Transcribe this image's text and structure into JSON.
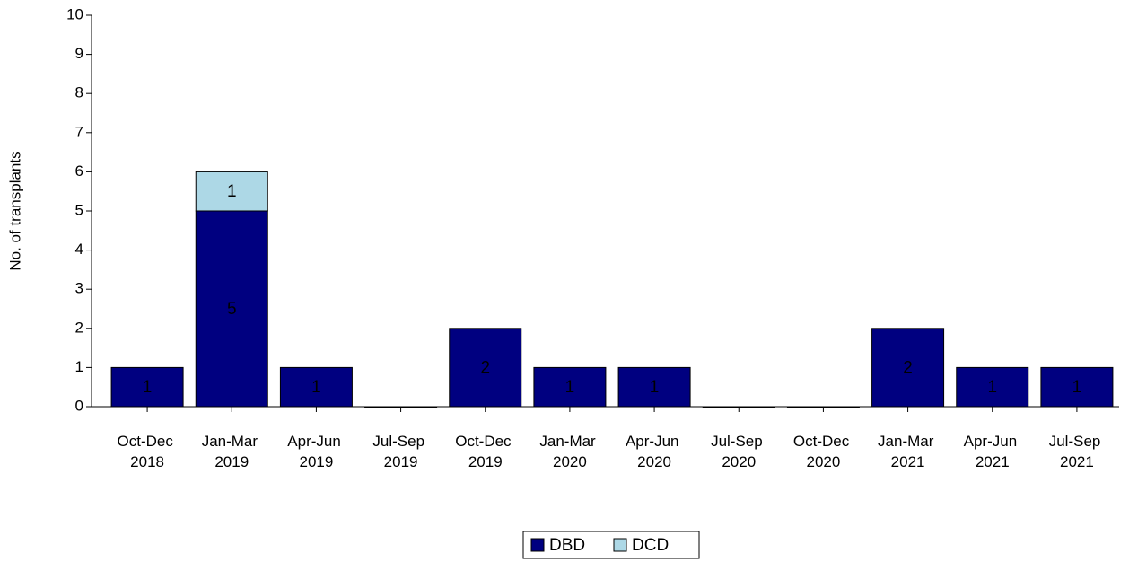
{
  "chart_data": {
    "type": "stacked_bar",
    "y_label": "No. of transplants",
    "categories": [
      "Oct-Dec 2018",
      "Jan-Mar 2019",
      "Apr-Jun 2019",
      "Jul-Sep 2019",
      "Oct-Dec 2019",
      "Jan-Mar 2020",
      "Apr-Jun 2020",
      "Jul-Sep 2020",
      "Oct-Dec 2020",
      "Jan-Mar 2021",
      "Apr-Jun 2021",
      "Jul-Sep 2021"
    ],
    "series": [
      {
        "name": "DBD",
        "color": "#000080",
        "label_color": "#ffffff",
        "values": [
          1,
          5,
          1,
          0,
          2,
          1,
          1,
          0,
          0,
          2,
          1,
          1
        ]
      },
      {
        "name": "DCD",
        "color": "#add8e6",
        "label_color": "#000000",
        "values": [
          0,
          1,
          0,
          0,
          0,
          0,
          0,
          0,
          0,
          0,
          0,
          0
        ]
      }
    ],
    "ylim": [
      0,
      10
    ],
    "yticks": [
      0,
      1,
      2,
      3,
      4,
      5,
      6,
      7,
      8,
      9,
      10
    ],
    "grid": false
  }
}
